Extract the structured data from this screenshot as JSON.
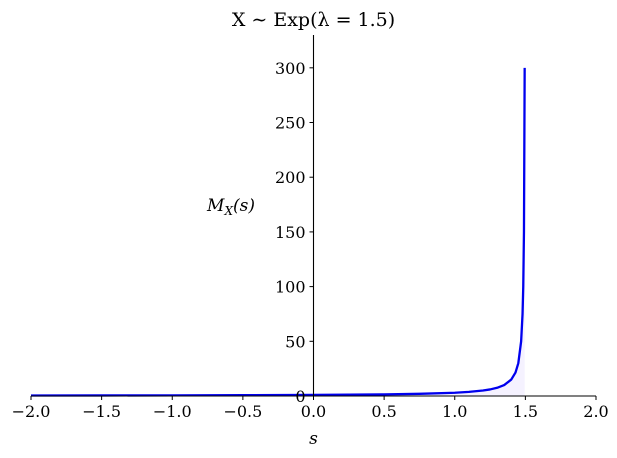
{
  "chart_data": {
    "type": "line",
    "title": "X ∼ Exp(λ = 1.5)",
    "xlabel": "s",
    "ylabel": "M_X(s)",
    "xlim": [
      -2.0,
      2.0
    ],
    "ylim": [
      0,
      330
    ],
    "grid": false,
    "spines": "centered",
    "x_ticks": [
      -2.0,
      -1.5,
      -1.0,
      -0.5,
      0.0,
      0.5,
      1.0,
      1.5,
      2.0
    ],
    "x_tick_labels": [
      "−2.0",
      "−1.5",
      "−1.0",
      "−0.5",
      "0.0",
      "0.5",
      "1.0",
      "1.5",
      "2.0"
    ],
    "y_ticks": [
      0,
      50,
      100,
      150,
      200,
      250,
      300
    ],
    "y_tick_labels": [
      "0",
      "50",
      "100",
      "150",
      "200",
      "250",
      "300"
    ],
    "series": [
      {
        "color": "#0000ee",
        "shade_color": "#ece8ff",
        "x": [
          -2.0,
          -1.5,
          -1.0,
          -0.5,
          0.0,
          0.25,
          0.5,
          0.75,
          1.0,
          1.1,
          1.2,
          1.25,
          1.3,
          1.35,
          1.4,
          1.43,
          1.45,
          1.47,
          1.48,
          1.485,
          1.49,
          1.495
        ],
        "y": [
          0.4286,
          0.5,
          0.6,
          0.75,
          1.0,
          1.2,
          1.5,
          2.0,
          3.0,
          3.75,
          5.0,
          6.0,
          7.5,
          10.0,
          15.0,
          21.43,
          30.0,
          50.0,
          75.0,
          100.0,
          150.0,
          300.0
        ]
      }
    ]
  }
}
